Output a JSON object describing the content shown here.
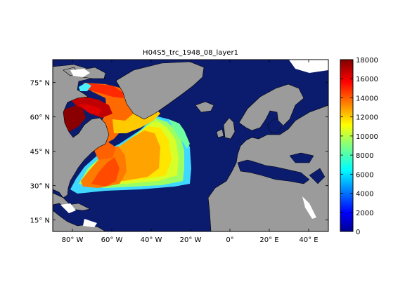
{
  "title": "H04S5_trc_1948_08_layer1",
  "map": {
    "lon_range": [
      -90,
      50
    ],
    "lat_range": [
      10,
      85
    ],
    "x_ticks": [
      "80° W",
      "60° W",
      "40° W",
      "20° W",
      "0°",
      "20° E",
      "40° E"
    ],
    "y_ticks": [
      "75° N",
      "60° N",
      "45° N",
      "30° N",
      "15° N"
    ],
    "ocean_color": "#0b1c6e",
    "land_color": "#9b9b9b",
    "nodata_color": "#ffffff"
  },
  "colorbar": {
    "range": [
      0,
      18000
    ],
    "ticks": [
      "0",
      "2000",
      "4000",
      "6000",
      "8000",
      "10000",
      "12000",
      "14000",
      "16000",
      "18000"
    ],
    "colormap": "jet"
  }
}
